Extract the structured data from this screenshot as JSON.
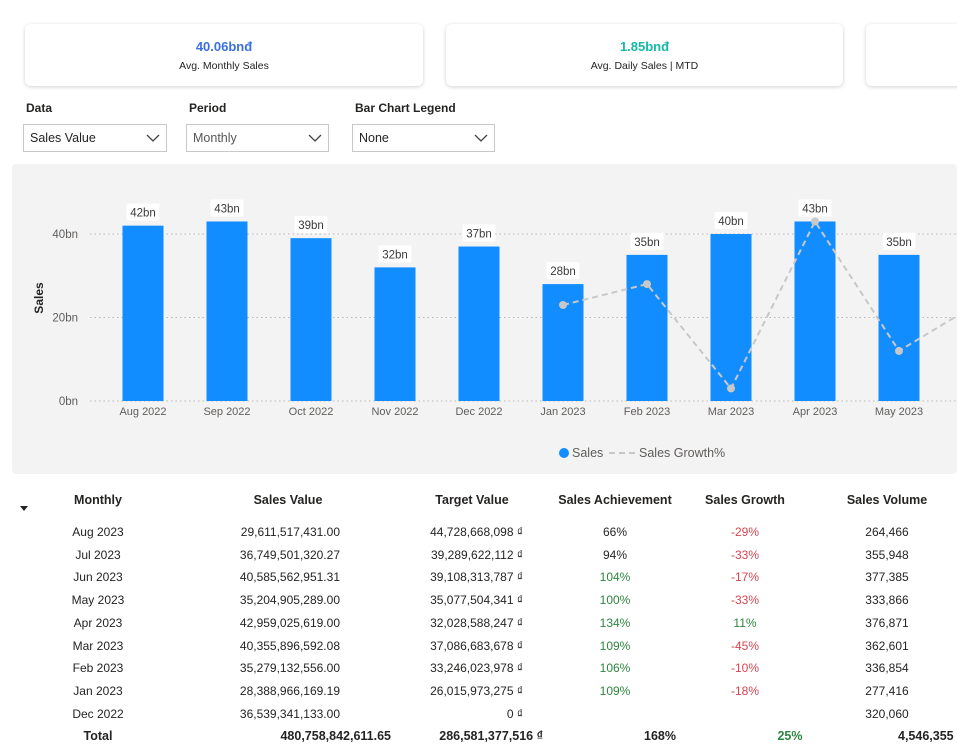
{
  "kpis": [
    {
      "value": "40.06bnđ",
      "label": "Avg. Monthly Sales",
      "color": "#3a6fe0"
    },
    {
      "value": "1.85bnđ",
      "label": "Avg. Daily Sales | MTD",
      "color": "#14b8a6"
    }
  ],
  "slicers": [
    {
      "title": "Data",
      "value": "Sales Value"
    },
    {
      "title": "Period",
      "value": "Monthly"
    },
    {
      "title": "Bar Chart Legend",
      "value": "None"
    }
  ],
  "chart_data": {
    "type": "bar",
    "categories": [
      "Aug 2022",
      "Sep 2022",
      "Oct 2022",
      "Nov 2022",
      "Dec 2022",
      "Jan 2023",
      "Feb 2023",
      "Mar 2023",
      "Apr 2023",
      "May 2023"
    ],
    "series": [
      {
        "name": "Sales",
        "values": [
          42,
          43,
          39,
          32,
          37,
          28,
          35,
          40,
          43,
          35
        ],
        "labels": [
          "42bn",
          "43bn",
          "39bn",
          "32bn",
          "37bn",
          "28bn",
          "35bn",
          "40bn",
          "43bn",
          "35bn"
        ],
        "color": "#118dff"
      },
      {
        "name": "Sales Growth%",
        "type": "line",
        "values": [
          null,
          null,
          null,
          null,
          null,
          23,
          28,
          3,
          43,
          12
        ],
        "color": "#c8c8c8"
      }
    ],
    "ylabel": "Sales",
    "ylim": [
      0,
      48
    ],
    "yticks": [
      "0bn",
      "20bn",
      "40bn"
    ],
    "ytick_values": [
      0,
      20,
      40
    ],
    "grid": true,
    "legend_position": "bottom-center"
  },
  "table": {
    "columns": [
      "Monthly",
      "Sales Value",
      "Target Value",
      "Sales Achievement",
      "Sales Growth",
      "Sales Volume"
    ],
    "rows": [
      {
        "month": "Aug 2023",
        "sales": "29,611,517,431.00",
        "target": "44,728,668,098 ₫",
        "ach": "66%",
        "ach_c": "",
        "growth": "-29%",
        "growth_c": "red",
        "volume": "264,466"
      },
      {
        "month": "Jul 2023",
        "sales": "36,749,501,320.27",
        "target": "39,289,622,112 ₫",
        "ach": "94%",
        "ach_c": "",
        "growth": "-33%",
        "growth_c": "red",
        "volume": "355,948"
      },
      {
        "month": "Jun 2023",
        "sales": "40,585,562,951.31",
        "target": "39,108,313,787 ₫",
        "ach": "104%",
        "ach_c": "green",
        "growth": "-17%",
        "growth_c": "red",
        "volume": "377,385"
      },
      {
        "month": "May 2023",
        "sales": "35,204,905,289.00",
        "target": "35,077,504,341 ₫",
        "ach": "100%",
        "ach_c": "green",
        "growth": "-33%",
        "growth_c": "red",
        "volume": "333,866"
      },
      {
        "month": "Apr 2023",
        "sales": "42,959,025,619.00",
        "target": "32,028,588,247 ₫",
        "ach": "134%",
        "ach_c": "green",
        "growth": "11%",
        "growth_c": "green",
        "volume": "376,871"
      },
      {
        "month": "Mar 2023",
        "sales": "40,355,896,592.08",
        "target": "37,086,683,678 ₫",
        "ach": "109%",
        "ach_c": "green",
        "growth": "-45%",
        "growth_c": "red",
        "volume": "362,601"
      },
      {
        "month": "Feb 2023",
        "sales": "35,279,132,556.00",
        "target": "33,246,023,978 ₫",
        "ach": "106%",
        "ach_c": "green",
        "growth": "-10%",
        "growth_c": "red",
        "volume": "336,854"
      },
      {
        "month": "Jan 2023",
        "sales": "28,388,966,169.19",
        "target": "26,015,973,275 ₫",
        "ach": "109%",
        "ach_c": "green",
        "growth": "-18%",
        "growth_c": "red",
        "volume": "277,416"
      },
      {
        "month": "Dec 2022",
        "sales": "36,539,341,133.00",
        "target": "0 ₫",
        "ach": "",
        "ach_c": "",
        "growth": "",
        "growth_c": "",
        "volume": "320,060"
      }
    ],
    "total": {
      "label": "Total",
      "sales": "480,758,842,611.65",
      "target": "286,581,377,516 ₫",
      "ach": "168%",
      "growth": "25%",
      "volume": "4,546,355"
    }
  }
}
